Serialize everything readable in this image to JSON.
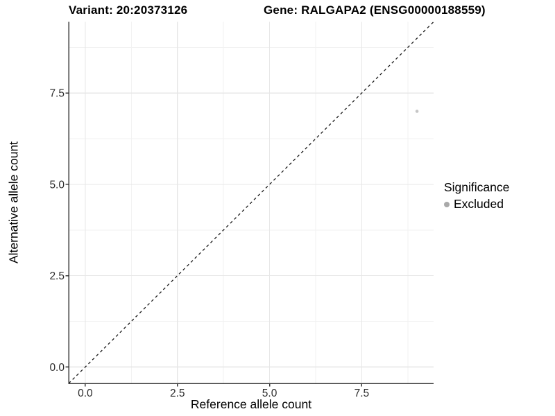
{
  "titles": {
    "variant": "Variant: 20:20373126",
    "gene": "Gene: RALGAPA2 (ENSG00000188559)"
  },
  "chart_data": {
    "type": "scatter",
    "xlabel": "Reference allele count",
    "ylabel": "Alternative allele count",
    "xlim": [
      -0.45,
      9.45
    ],
    "ylim": [
      -0.45,
      9.45
    ],
    "x_major_ticks": [
      0,
      2.5,
      5,
      7.5
    ],
    "x_tick_labels": [
      "0.0",
      "2.5",
      "5.0",
      "7.5"
    ],
    "x_minor_ticks": [
      1.25,
      3.75,
      6.25,
      8.75
    ],
    "y_major_ticks": [
      0,
      2.5,
      5,
      7.5
    ],
    "y_tick_labels": [
      "0.0",
      "2.5",
      "5.0",
      "7.5"
    ],
    "y_minor_ticks": [
      1.25,
      3.75,
      6.25,
      8.75
    ],
    "grid": "major+minor",
    "reference_line": {
      "kind": "identity y=x",
      "style": "dashed",
      "color": "#1a1a1a"
    },
    "series": [
      {
        "name": "Excluded",
        "color": "#c6c6c6",
        "points": [
          {
            "x": 9,
            "y": 7
          }
        ]
      }
    ],
    "legend": {
      "title": "Significance",
      "position": "right",
      "entries": [
        {
          "label": "Excluded",
          "color": "#a9a9a9"
        }
      ]
    }
  },
  "colors": {
    "background": "#ffffff",
    "axis_line": "#383838",
    "grid_major": "#e7e7e7",
    "grid_minor": "#f2f2f2",
    "tick_label": "#2b2b2b"
  }
}
